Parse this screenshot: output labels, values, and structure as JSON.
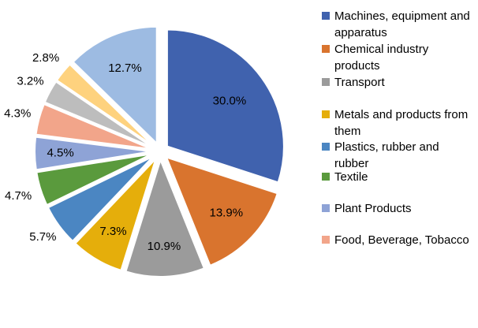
{
  "chart_data": {
    "type": "pie",
    "exploded": true,
    "slices": [
      {
        "label": "Machines, equipment and apparatus",
        "value": 30.0,
        "display": "30.0%",
        "color": "#4062AE"
      },
      {
        "label": "Chemical industry products",
        "value": 13.9,
        "display": "13.9%",
        "color": "#D9742E"
      },
      {
        "label": "Transport",
        "value": 10.9,
        "display": "10.9%",
        "color": "#9B9B9B"
      },
      {
        "label": "Metals and products from them",
        "value": 7.3,
        "display": "7.3%",
        "color": "#E5AE0B"
      },
      {
        "label": "Plastics, rubber and rubber",
        "value": 5.7,
        "display": "5.7%",
        "color": "#4B86C2"
      },
      {
        "label": "Textile",
        "value": 4.7,
        "display": "4.7%",
        "color": "#5A9A3D"
      },
      {
        "label": "Plant Products",
        "value": 4.5,
        "display": "4.5%",
        "color": "#8EA3D6"
      },
      {
        "label": "Food, Beverage, Tobacco",
        "value": 4.3,
        "display": "4.3%",
        "color": "#F2A58A"
      },
      {
        "label": "",
        "value": 3.2,
        "display": "3.2%",
        "color": "#BDBDBD"
      },
      {
        "label": "",
        "value": 2.8,
        "display": "2.8%",
        "color": "#FED27E"
      },
      {
        "label": "",
        "value": 12.7,
        "display": "12.7%",
        "color": "#9DBBE2"
      }
    ],
    "legend": {
      "placement": "right",
      "entries": [
        "Machines, equipment and apparatus",
        "Chemical industry products",
        "Transport",
        "Metals and products from them",
        "Plastics, rubber and rubber",
        "Textile",
        "Plant Products",
        "Food, Beverage, Tobacco"
      ]
    }
  }
}
